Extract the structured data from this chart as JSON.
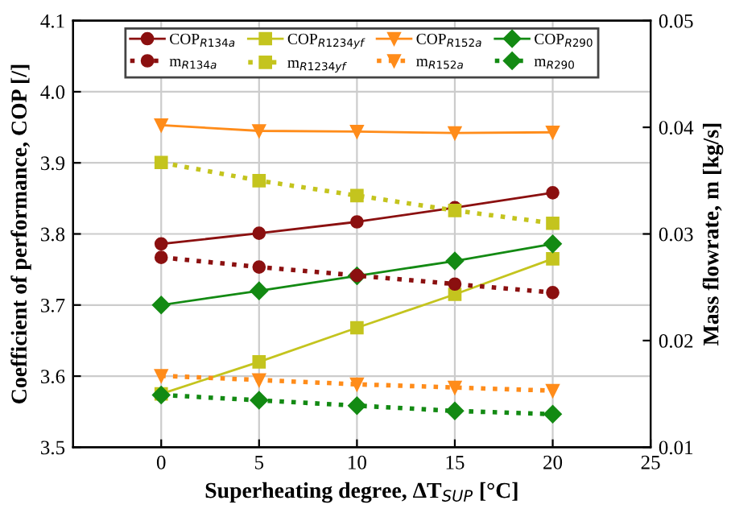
{
  "chart_data": {
    "type": "line",
    "xlabel": "Superheating degree, ΔT$_{SUP}$ [°C]",
    "ylabel": "Coefficient of performance, COP [/]",
    "y2label": "Mass flowrate, m [kg/s]",
    "x": [
      0,
      5,
      10,
      15,
      20
    ],
    "xlim": [
      -4.5,
      25
    ],
    "xticks": [
      0,
      5,
      10,
      15,
      20,
      25
    ],
    "ylim": [
      3.5,
      4.1
    ],
    "yticks": [
      3.5,
      3.6,
      3.7,
      3.8,
      3.9,
      {
        "value": 4,
        "label": "4.0"
      },
      4.1
    ],
    "y2lim": [
      0.01,
      0.05
    ],
    "y2ticks": [
      0.01,
      0.02,
      0.03,
      0.04,
      0.05
    ],
    "grid": true,
    "legend": "top",
    "series": [
      {
        "name": "COP$_{R134a}$",
        "color": "#8b1010",
        "marker": "circle",
        "line_style": "solid",
        "values": [
          3.786,
          3.801,
          3.817,
          3.837,
          3.858
        ]
      },
      {
        "name": "m$_{R134a}$",
        "color": "#8b1010",
        "marker": "circle",
        "line_style": "dotted",
        "axis": "y2",
        "values": [
          0.0278,
          0.0269,
          0.0261,
          0.0253,
          0.0245
        ]
      },
      {
        "name": "COP$_{R1234yf}$",
        "color": "#c4c41e",
        "marker": "square",
        "line_style": "solid",
        "values": [
          3.575,
          3.62,
          3.668,
          3.715,
          3.765
        ]
      },
      {
        "name": "m$_{R1234yf}$",
        "color": "#c4c41e",
        "marker": "square",
        "line_style": "dotted",
        "axis": "y2",
        "values": [
          0.0367,
          0.035,
          0.0336,
          0.0322,
          0.031
        ]
      },
      {
        "name": "COP$_{R152a}$",
        "color": "#ff8c1a",
        "marker": "triangle",
        "line_style": "solid",
        "values": [
          3.953,
          3.945,
          3.944,
          3.942,
          3.943
        ]
      },
      {
        "name": "m$_{R152a}$",
        "color": "#ff8c1a",
        "marker": "triangle",
        "line_style": "dotted",
        "axis": "y2",
        "values": [
          0.0167,
          0.0163,
          0.0159,
          0.0156,
          0.0153
        ]
      },
      {
        "name": "COP$_{R290}$",
        "color": "#138a13",
        "marker": "diamond",
        "line_style": "solid",
        "values": [
          3.7,
          3.72,
          3.741,
          3.762,
          3.786
        ]
      },
      {
        "name": "m$_{R290}$",
        "color": "#138a13",
        "marker": "diamond",
        "line_style": "dotted",
        "axis": "y2",
        "values": [
          0.0149,
          0.0144,
          0.0139,
          0.0134,
          0.0131
        ]
      }
    ]
  }
}
